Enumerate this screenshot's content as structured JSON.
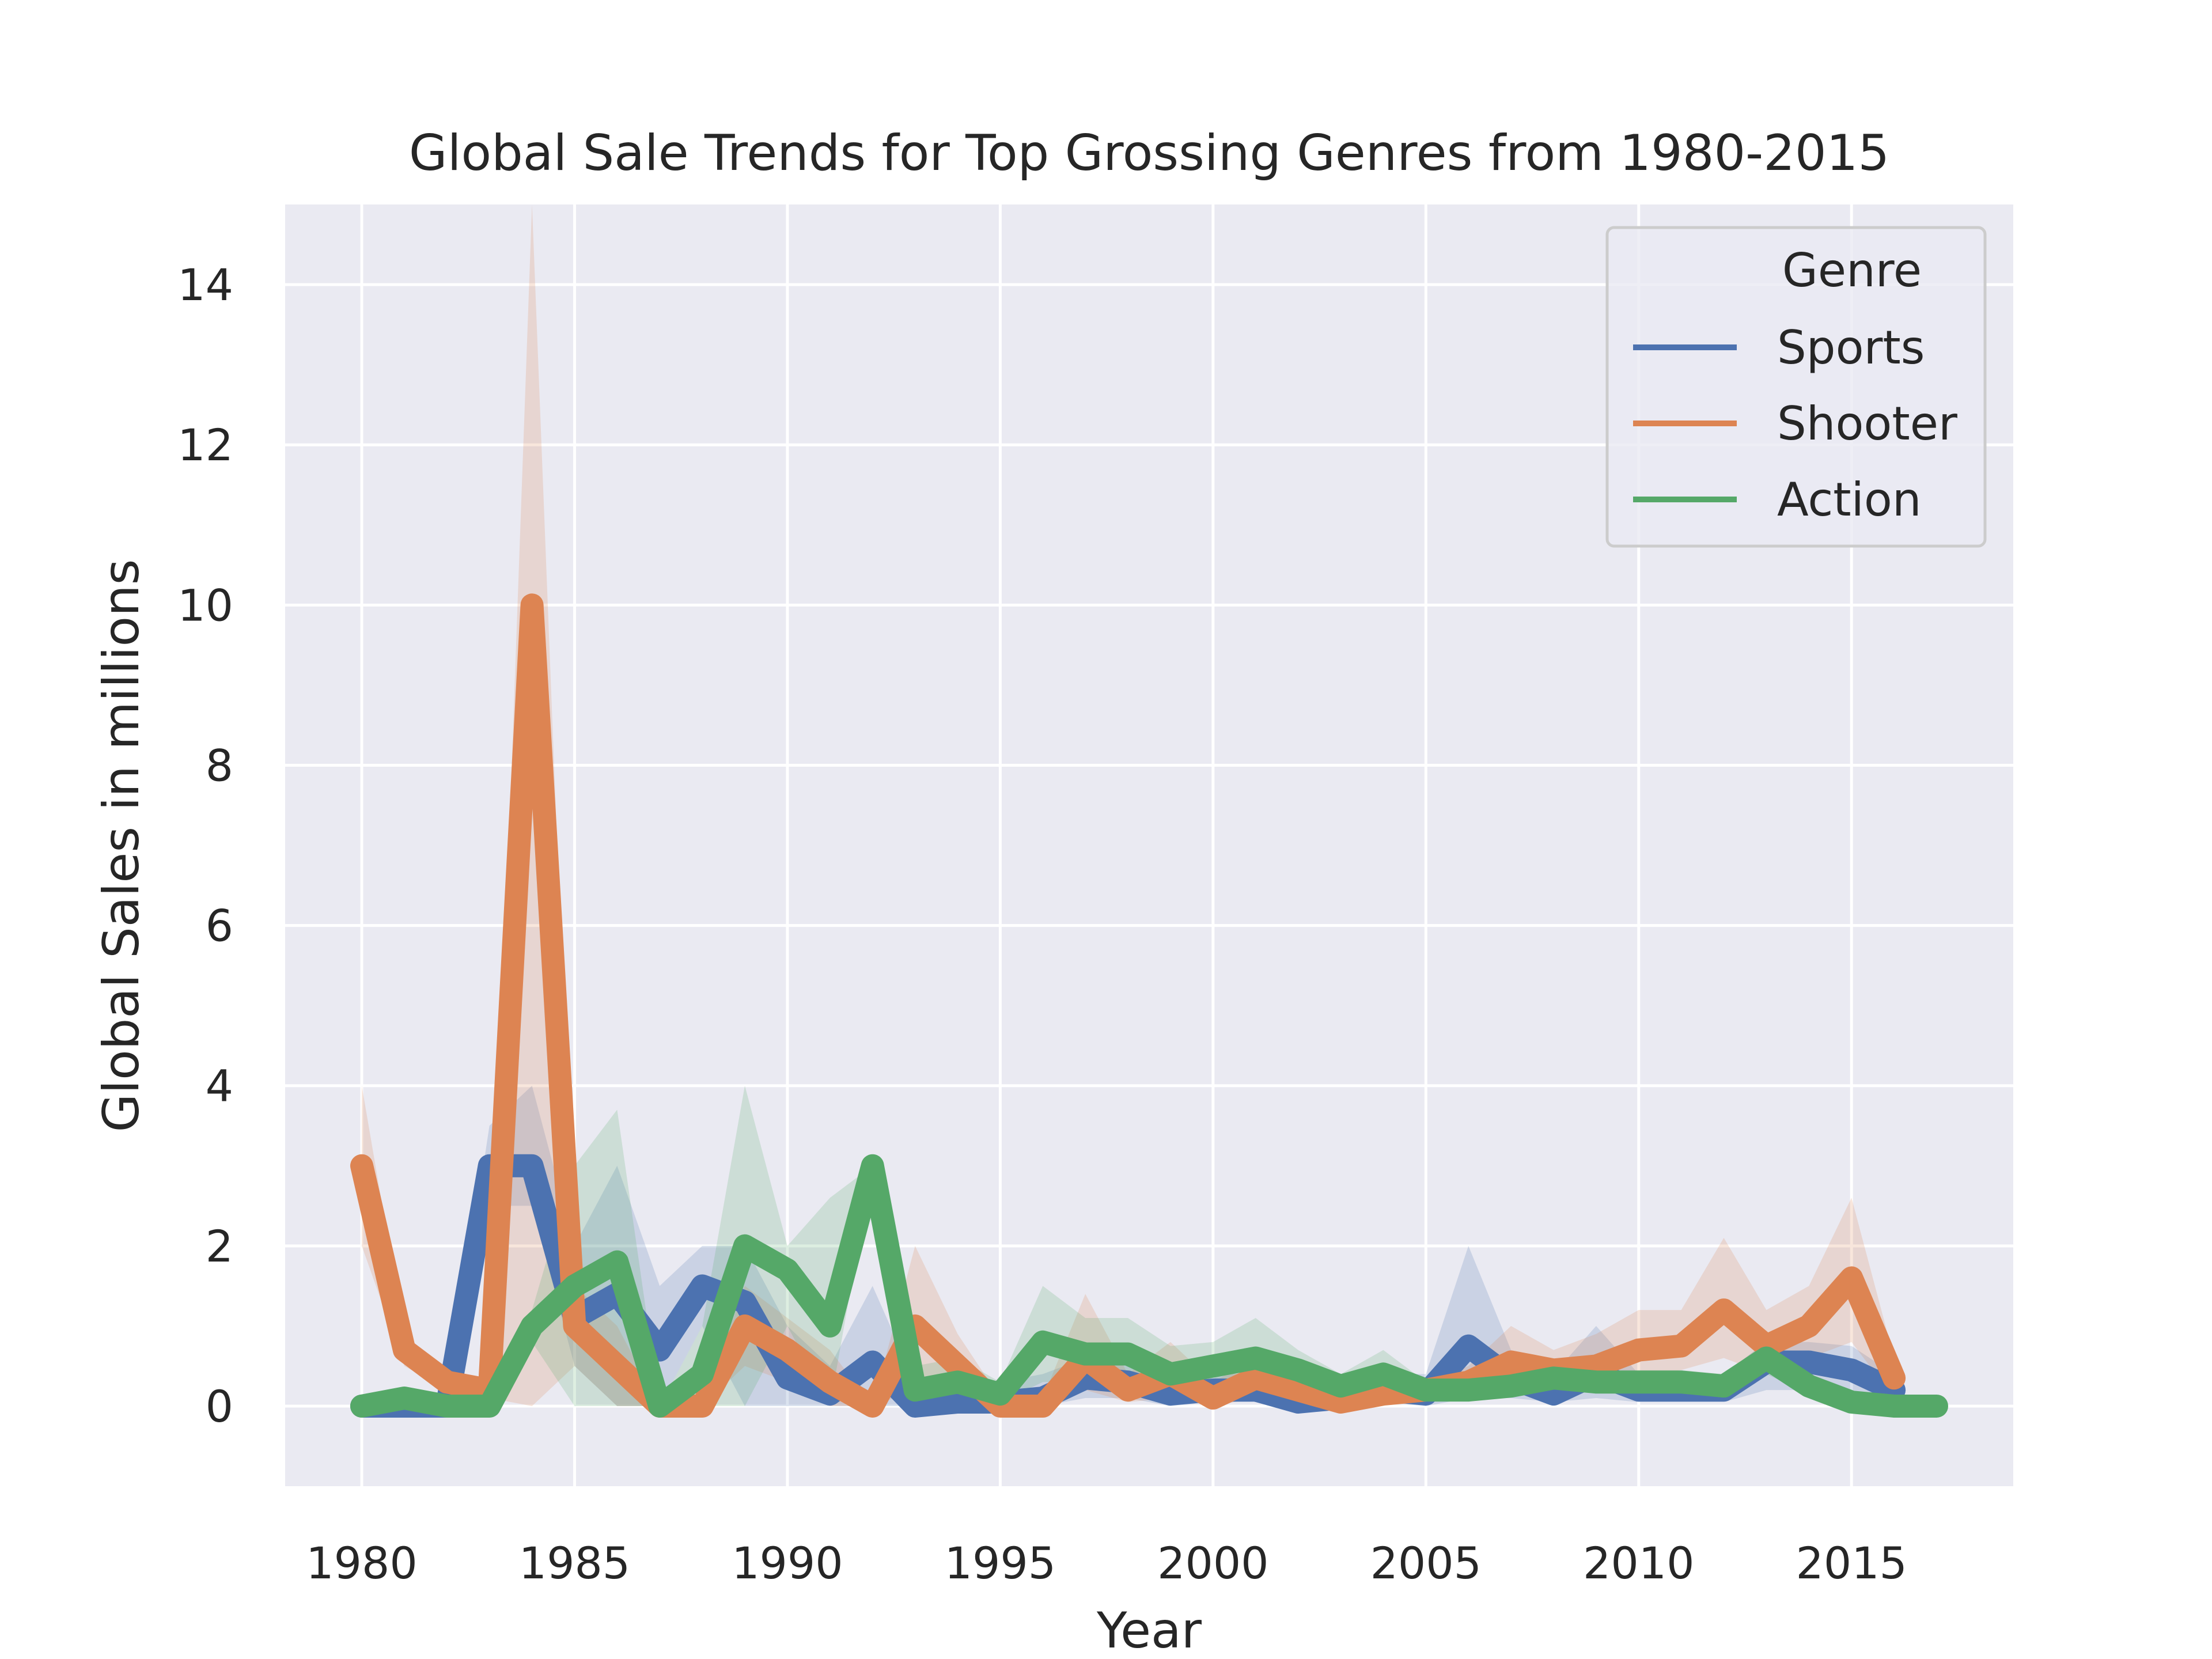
{
  "chart_data": {
    "type": "line",
    "title": "Global Sale Trends for Top Grossing Genres from 1980-2015",
    "xlabel": "Year",
    "ylabel": "Global Sales in millions",
    "xlim": [
      1978.2,
      2018.8
    ],
    "ylim": [
      -1.0,
      15.0
    ],
    "xticks": [
      1980,
      1985,
      1990,
      1995,
      2000,
      2005,
      2010,
      2015
    ],
    "yticks": [
      0,
      2,
      4,
      6,
      8,
      10,
      12,
      14
    ],
    "grid": true,
    "legend": {
      "title": "Genre",
      "position": "top-right"
    },
    "series": [
      {
        "name": "Sports",
        "color": "#4c72b0",
        "x": [
          1980,
          1981,
          1982,
          1983,
          1984,
          1985,
          1986,
          1987,
          1988,
          1989,
          1990,
          1991,
          1992,
          1993,
          1994,
          1995,
          1996,
          1997,
          1998,
          1999,
          2000,
          2001,
          2002,
          2003,
          2004,
          2005,
          2006,
          2007,
          2008,
          2009,
          2010,
          2011,
          2012,
          2013,
          2014,
          2015,
          2016
        ],
        "y": [
          0.0,
          0.0,
          0.0,
          3.0,
          3.0,
          1.1,
          1.4,
          0.7,
          1.5,
          1.3,
          0.35,
          0.15,
          0.55,
          0.0,
          0.05,
          0.05,
          0.1,
          0.35,
          0.3,
          0.15,
          0.2,
          0.2,
          0.05,
          0.1,
          0.2,
          0.15,
          0.75,
          0.35,
          0.15,
          0.4,
          0.2,
          0.2,
          0.2,
          0.55,
          0.55,
          0.45,
          0.2
        ],
        "lower": [
          0.0,
          0.0,
          0.0,
          2.5,
          2.5,
          0.5,
          0.0,
          0.0,
          1.0,
          0.0,
          0.0,
          0.0,
          0.0,
          0.0,
          0.0,
          0.0,
          0.0,
          0.1,
          0.1,
          0.0,
          0.05,
          0.05,
          0.0,
          0.0,
          0.05,
          0.0,
          0.1,
          0.1,
          0.05,
          0.1,
          0.05,
          0.05,
          0.05,
          0.2,
          0.2,
          0.15,
          0.05
        ],
        "upper": [
          0.0,
          0.0,
          0.0,
          3.5,
          4.0,
          2.0,
          3.0,
          1.5,
          2.0,
          2.0,
          1.0,
          0.5,
          1.5,
          0.3,
          0.3,
          0.3,
          0.4,
          0.6,
          0.6,
          0.4,
          0.4,
          0.4,
          0.2,
          0.3,
          0.4,
          0.4,
          2.0,
          0.7,
          0.4,
          1.0,
          0.4,
          0.4,
          0.4,
          0.8,
          0.8,
          0.75,
          0.4
        ]
      },
      {
        "name": "Shooter",
        "color": "#dd8452",
        "x": [
          1980,
          1981,
          1982,
          1983,
          1984,
          1985,
          1986,
          1987,
          1988,
          1989,
          1990,
          1991,
          1992,
          1993,
          1994,
          1995,
          1996,
          1997,
          1998,
          1999,
          2000,
          2001,
          2002,
          2003,
          2004,
          2005,
          2006,
          2007,
          2008,
          2009,
          2010,
          2011,
          2012,
          2013,
          2014,
          2015,
          2016
        ],
        "y": [
          3.0,
          0.7,
          0.3,
          0.2,
          10.0,
          1.0,
          0.5,
          0.0,
          0.0,
          1.0,
          0.7,
          0.3,
          0.0,
          1.0,
          0.5,
          0.0,
          0.0,
          0.6,
          0.2,
          0.4,
          0.1,
          0.35,
          0.2,
          0.05,
          0.15,
          0.2,
          0.3,
          0.55,
          0.45,
          0.5,
          0.7,
          0.75,
          1.2,
          0.75,
          1.0,
          1.6,
          0.35
        ],
        "lower": [
          2.0,
          0.5,
          0.2,
          0.1,
          0.0,
          0.5,
          0.0,
          0.0,
          0.0,
          0.5,
          0.3,
          0.0,
          0.0,
          0.2,
          0.2,
          0.0,
          0.0,
          0.2,
          0.05,
          0.1,
          0.0,
          0.1,
          0.05,
          0.0,
          0.05,
          0.1,
          0.15,
          0.3,
          0.25,
          0.3,
          0.35,
          0.45,
          0.6,
          0.4,
          0.6,
          0.8,
          0.1
        ],
        "upper": [
          4.0,
          0.9,
          0.4,
          0.3,
          15.0,
          1.5,
          1.0,
          0.0,
          0.0,
          1.5,
          1.1,
          0.7,
          0.0,
          2.0,
          0.9,
          0.1,
          0.1,
          1.4,
          0.4,
          0.8,
          0.3,
          0.6,
          0.4,
          0.15,
          0.3,
          0.3,
          0.5,
          1.0,
          0.7,
          0.9,
          1.2,
          1.2,
          2.1,
          1.2,
          1.5,
          2.6,
          0.6
        ]
      },
      {
        "name": "Action",
        "color": "#55a868",
        "x": [
          1980,
          1981,
          1982,
          1983,
          1984,
          1985,
          1986,
          1987,
          1988,
          1989,
          1990,
          1991,
          1992,
          1993,
          1994,
          1995,
          1996,
          1997,
          1998,
          1999,
          2000,
          2001,
          2002,
          2003,
          2004,
          2005,
          2006,
          2007,
          2008,
          2009,
          2010,
          2011,
          2012,
          2013,
          2014,
          2015,
          2016,
          2017
        ],
        "y": [
          0.0,
          0.1,
          0.0,
          0.0,
          1.0,
          1.5,
          1.8,
          0.0,
          0.4,
          2.0,
          1.7,
          1.0,
          3.0,
          0.2,
          0.3,
          0.15,
          0.8,
          0.65,
          0.65,
          0.4,
          0.5,
          0.6,
          0.45,
          0.25,
          0.4,
          0.2,
          0.2,
          0.25,
          0.35,
          0.3,
          0.3,
          0.3,
          0.25,
          0.6,
          0.25,
          0.05,
          0.0,
          0.0
        ],
        "lower": [
          0.0,
          0.0,
          0.0,
          0.0,
          0.8,
          0.0,
          0.0,
          0.0,
          0.0,
          0.0,
          1.0,
          0.0,
          3.0,
          0.0,
          0.1,
          0.05,
          0.3,
          0.3,
          0.3,
          0.1,
          0.2,
          0.3,
          0.2,
          0.1,
          0.2,
          0.1,
          0.1,
          0.15,
          0.2,
          0.2,
          0.2,
          0.2,
          0.15,
          0.4,
          0.15,
          0.0,
          0.0,
          0.0
        ],
        "upper": [
          0.0,
          0.2,
          0.0,
          0.0,
          1.2,
          3.0,
          3.7,
          0.0,
          1.0,
          4.0,
          2.0,
          2.6,
          3.0,
          0.5,
          0.6,
          0.3,
          1.5,
          1.1,
          1.1,
          0.75,
          0.8,
          1.1,
          0.7,
          0.4,
          0.7,
          0.3,
          0.3,
          0.4,
          0.5,
          0.45,
          0.45,
          0.45,
          0.4,
          0.8,
          0.4,
          0.15,
          0.05,
          0.0
        ]
      }
    ]
  }
}
